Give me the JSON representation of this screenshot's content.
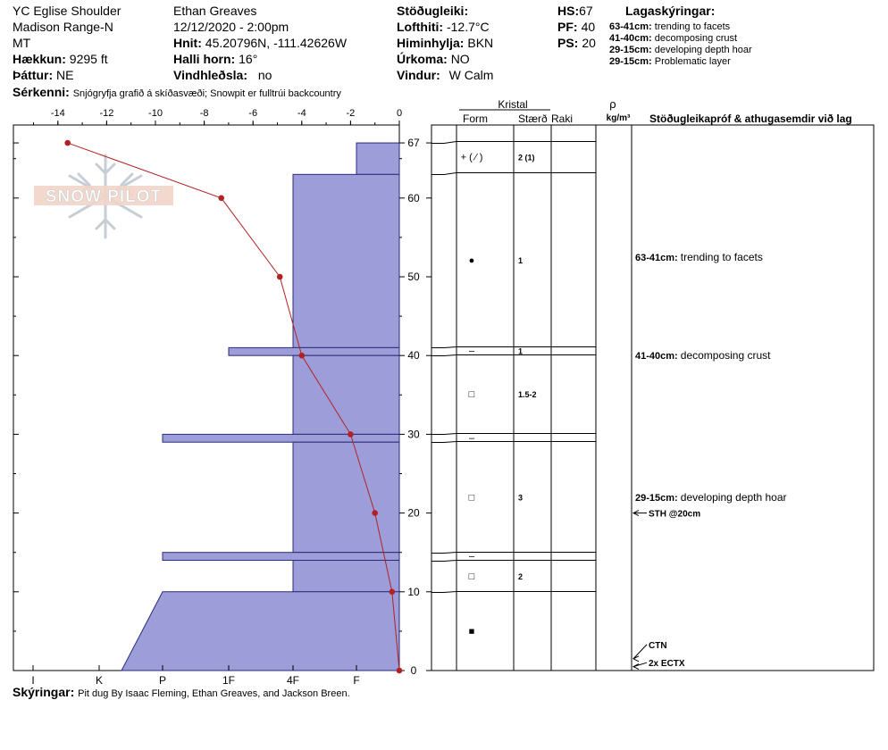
{
  "header": {
    "location": "YC Eglise Shoulder",
    "range": "Madison Range-N",
    "state": "MT",
    "elevation_label": "Hækkun:",
    "elevation_value": "9295 ft",
    "aspect_label": "Þáttur:",
    "aspect_value": "NE",
    "observer": "Ethan Greaves",
    "datetime": "12/12/2020 - 2:00pm",
    "coords_label": "Hnit:",
    "coords_value": "45.20796N, -111.42626W",
    "slope_label": "Halli horn:",
    "slope_value": "16°",
    "wind_loading_label": "Vindhleðsla:",
    "wind_loading_value": "no",
    "stability_label": "Stöðugleiki:",
    "air_temp_label": "Lofthiti:",
    "air_temp_value": "-12.7°C",
    "sky_label": "Himinhylja:",
    "sky_value": "BKN",
    "precip_label": "Úrkoma:",
    "precip_value": "NO",
    "wind_label": "Vindur:",
    "wind_value": "W Calm",
    "hs_label": "HS:",
    "hs_value": "67",
    "pf_label": "PF:",
    "pf_value": "40",
    "ps_label": "PS:",
    "ps_value": "20",
    "features_label": "Sérkenni:",
    "features_value": "Snjógryfja grafið á skíðasvæði;  Snowpit er fulltrúi backcountry"
  },
  "legend": {
    "title": "Lagaskýringar:",
    "items": [
      {
        "range": "63-41cm:",
        "text": "trending to facets"
      },
      {
        "range": "41-40cm:",
        "text": "decomposing crust"
      },
      {
        "range": "29-15cm:",
        "text": "developing depth hoar"
      },
      {
        "range": "29-15cm:",
        "text": "Problematic layer"
      }
    ]
  },
  "logo_text": "SNOW PILOT",
  "columns": {
    "kristal": "Kristal",
    "form": "Form",
    "size": "Stærð",
    "moisture": "Raki",
    "rho": "ρ",
    "density_unit": "kg/m³",
    "tests": "Stöðugleikapróf & athugasemdir við lag"
  },
  "layer_comments": [
    {
      "range": "63-41cm:",
      "text": "trending to facets",
      "height": 52.5
    },
    {
      "range": "41-40cm:",
      "text": "decomposing crust",
      "height": 40
    },
    {
      "range": "29-15cm:",
      "text": "developing depth hoar",
      "height": 22
    }
  ],
  "tests": [
    {
      "label": "STH @20cm",
      "height": 20
    },
    {
      "label": "CTN",
      "height": 1.5
    },
    {
      "label": "2x ECTX",
      "height": 0.5
    }
  ],
  "footer": {
    "label": "Skýringar:",
    "text": "Pit dug By Isaac Fleming, Ethan Greaves, and Jackson Breen."
  },
  "chart_data": {
    "type": "snow-profile",
    "depth_ticks": [
      0,
      10,
      20,
      30,
      40,
      50,
      60,
      67
    ],
    "temp_ticks": [
      -14,
      -12,
      -10,
      -8,
      -6,
      -4,
      -2,
      0
    ],
    "hardness_ticks": [
      "I",
      "K",
      "P",
      "1F",
      "4F",
      "F"
    ],
    "temperature_profile": [
      {
        "temp": -13.6,
        "depth": 67
      },
      {
        "temp": -7.3,
        "depth": 60
      },
      {
        "temp": -4.9,
        "depth": 50
      },
      {
        "temp": -4.0,
        "depth": 40
      },
      {
        "temp": -2.0,
        "depth": 30
      },
      {
        "temp": -1.0,
        "depth": 20
      },
      {
        "temp": -0.3,
        "depth": 10
      },
      {
        "temp": 0.0,
        "depth": 0
      }
    ],
    "hardness_profile": [
      {
        "top": 67,
        "bottom": 63,
        "hardness": "F"
      },
      {
        "top": 63,
        "bottom": 41,
        "hardness": "4F"
      },
      {
        "top": 41,
        "bottom": 40,
        "hardness": "1F"
      },
      {
        "top": 40,
        "bottom": 30,
        "hardness": "4F"
      },
      {
        "top": 30,
        "bottom": 29,
        "hardness": "P"
      },
      {
        "top": 29,
        "bottom": 15,
        "hardness": "4F"
      },
      {
        "top": 15,
        "bottom": 14,
        "hardness": "P"
      },
      {
        "top": 14,
        "bottom": 10,
        "hardness": "4F"
      },
      {
        "top": 10,
        "bottom": 0,
        "hardness": "P to K (tapered)"
      }
    ],
    "layers": [
      {
        "top": 67,
        "bottom": 63,
        "form": "+ ( ⁄ )",
        "size": "2 (1)"
      },
      {
        "top": 63,
        "bottom": 41,
        "form": "●",
        "size": "1"
      },
      {
        "top": 41,
        "bottom": 40,
        "form": "–",
        "size": "1"
      },
      {
        "top": 40,
        "bottom": 30,
        "form": "□",
        "size": "1.5-2"
      },
      {
        "top": 30,
        "bottom": 29,
        "form": "–",
        "size": ""
      },
      {
        "top": 29,
        "bottom": 15,
        "form": "□",
        "size": "3"
      },
      {
        "top": 15,
        "bottom": 14,
        "form": "–",
        "size": ""
      },
      {
        "top": 14,
        "bottom": 10,
        "form": "□",
        "size": "2"
      },
      {
        "top": 10,
        "bottom": 0,
        "form": "■",
        "size": ""
      }
    ]
  }
}
